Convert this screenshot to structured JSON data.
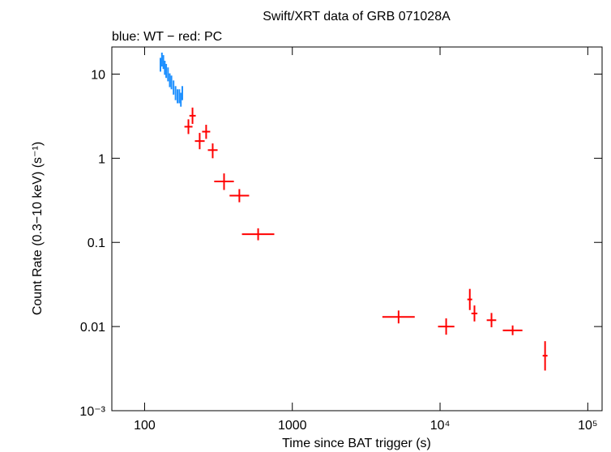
{
  "chart_data": {
    "type": "errorbar",
    "title": "Swift/XRT data of GRB 071028A",
    "subtitle": "blue: WT − red: PC",
    "x_label": "Time since BAT trigger (s)",
    "y_label": "Count Rate (0.3−10 keV) (s⁻¹)",
    "xscale": "log",
    "yscale": "log",
    "xlim": [
      60,
      125000
    ],
    "ylim": [
      0.001,
      21
    ],
    "xticks": [
      100,
      1000,
      {
        "value": 10000,
        "label": "10⁴"
      },
      {
        "value": 100000,
        "label": "10⁵"
      }
    ],
    "yticks": [
      {
        "value": 0.001,
        "label": "10⁻³"
      },
      0.01,
      0.1,
      1,
      10
    ],
    "series": [
      {
        "name": "WT",
        "color": "#1e90ff",
        "x": [
          128,
          131,
          134,
          137,
          140,
          144,
          148,
          152,
          157,
          162,
          167,
          172,
          176,
          180
        ],
        "x_lo": [
          126.5,
          129.5,
          132.5,
          135.5,
          138.5,
          142.5,
          146.5,
          150.5,
          155.5,
          160.5,
          165.5,
          170.5,
          174.5,
          178.5
        ],
        "x_hi": [
          129.5,
          132.5,
          135.5,
          138.5,
          141.5,
          145.5,
          149.5,
          153.5,
          158.5,
          163.5,
          168.5,
          173.5,
          177.5,
          181.5
        ],
        "values": [
          13,
          15,
          14,
          12,
          11,
          10,
          8.5,
          8,
          7,
          6,
          5.5,
          5.5,
          5,
          6
        ],
        "y_lo": [
          10.7,
          12.3,
          11.5,
          9.8,
          9.0,
          8.2,
          7.0,
          6.6,
          5.7,
          4.9,
          4.5,
          4.5,
          4.1,
          4.9
        ],
        "y_hi": [
          15.6,
          18,
          16.8,
          14.4,
          13.2,
          12,
          10.2,
          9.6,
          8.4,
          7.2,
          6.6,
          6.6,
          6.0,
          7.2
        ]
      },
      {
        "name": "PC",
        "color": "#ff0000",
        "x": [
          198,
          211,
          236,
          261,
          289,
          345,
          438,
          587,
          5240,
          11000,
          15900,
          17100,
          22300,
          31000,
          51400
        ],
        "x_lo": [
          186,
          201,
          219,
          245,
          268,
          296,
          376,
          456,
          4070,
          9690,
          15300,
          16300,
          20700,
          26600,
          49500
        ],
        "x_hi": [
          211,
          222,
          255,
          278,
          312,
          402,
          510,
          755,
          6740,
          12500,
          16500,
          17900,
          24000,
          36100,
          53400
        ],
        "values": [
          2.37,
          3.2,
          1.6,
          2.07,
          1.25,
          0.53,
          0.36,
          0.125,
          0.013,
          0.01,
          0.021,
          0.0143,
          0.0119,
          0.009,
          0.0045
        ],
        "y_lo": [
          1.94,
          2.56,
          1.28,
          1.7,
          1.0,
          0.42,
          0.3,
          0.106,
          0.0109,
          0.008,
          0.0157,
          0.0115,
          0.0098,
          0.0079,
          0.003
        ],
        "y_hi": [
          2.9,
          4.0,
          2.0,
          2.5,
          1.5,
          0.66,
          0.43,
          0.147,
          0.0155,
          0.0125,
          0.028,
          0.0178,
          0.0145,
          0.0103,
          0.0067
        ]
      }
    ]
  }
}
